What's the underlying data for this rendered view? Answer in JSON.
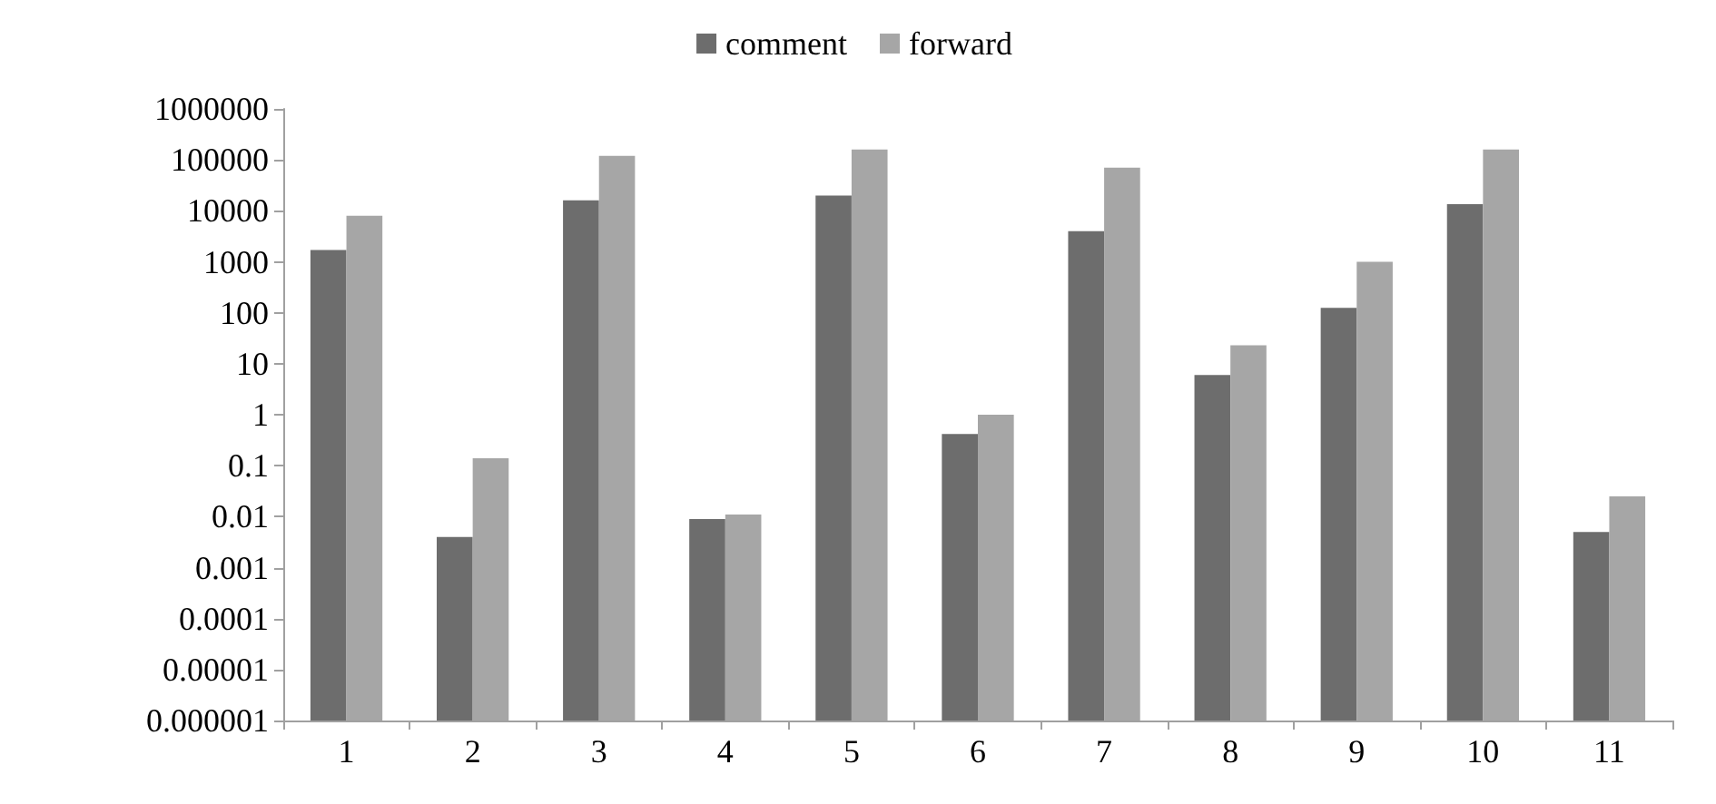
{
  "chart_data": {
    "type": "bar",
    "categories": [
      "1",
      "2",
      "3",
      "4",
      "5",
      "6",
      "7",
      "8",
      "9",
      "10",
      "11"
    ],
    "series": [
      {
        "name": "comment",
        "color": "#6d6d6d",
        "values": [
          1700,
          0.004,
          16000,
          0.009,
          20000,
          0.42,
          4000,
          6,
          125,
          13500,
          0.005
        ]
      },
      {
        "name": "forward",
        "color": "#a6a6a6",
        "values": [
          8000,
          0.14,
          120000,
          0.011,
          160000,
          1,
          70000,
          23,
          1000,
          160000,
          0.025
        ]
      }
    ],
    "log": "y",
    "ylim": [
      1e-06,
      1000000
    ],
    "yticks": [
      {
        "value": 1e-06,
        "label": "0.000001"
      },
      {
        "value": 1e-05,
        "label": "0.00001"
      },
      0.0001,
      0.001,
      0.01,
      0.1,
      1,
      10,
      100,
      1000,
      10000,
      100000,
      1000000
    ],
    "grid": false,
    "legend": "top"
  }
}
